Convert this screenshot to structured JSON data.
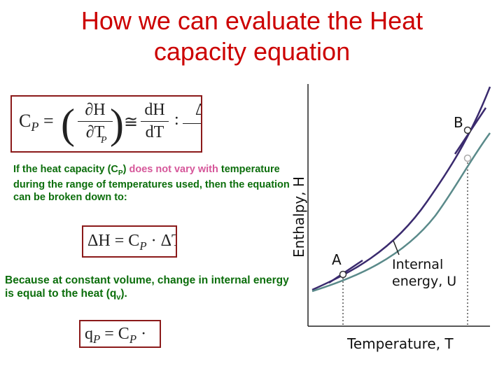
{
  "slide": {
    "title_line1": "How we can evaluate the Heat",
    "title_line2": "capacity equation"
  },
  "equations": {
    "eq1": {
      "cp": "C",
      "cp_sub": "P",
      "eq": "=",
      "dH_partial": "∂H",
      "dT_partial": "∂T",
      "sub_p": "P",
      "approx": "≅",
      "dH": "dH",
      "dT": "dT",
      "colon": ":",
      "delta": "Δ"
    },
    "eq2": {
      "text": "ΔH = C",
      "sub": "P",
      "rest": " · ΔT"
    },
    "eq3": {
      "q": "q",
      "q_sub": "P",
      "mid": " = C",
      "c_sub": "P",
      "rest": " ·"
    }
  },
  "para1": {
    "pre": "If the heat capacity (",
    "cp": "C",
    "cp_sub": "P",
    "close": ")",
    "hl": " does not vary with",
    "rest": "temperature during the range of temperatures used, then the equation can be broken down to:"
  },
  "para2": {
    "text": "Because at constant volume, change in internal energy is equal to the heat (q",
    "sub": "v",
    "end": ")."
  },
  "chart": {
    "ylabel": "Enthalpy, H",
    "xlabel": "Temperature, T",
    "point_a": "A",
    "point_b": "B",
    "u_label_line1": "Internal",
    "u_label_line2": "energy, U"
  }
}
